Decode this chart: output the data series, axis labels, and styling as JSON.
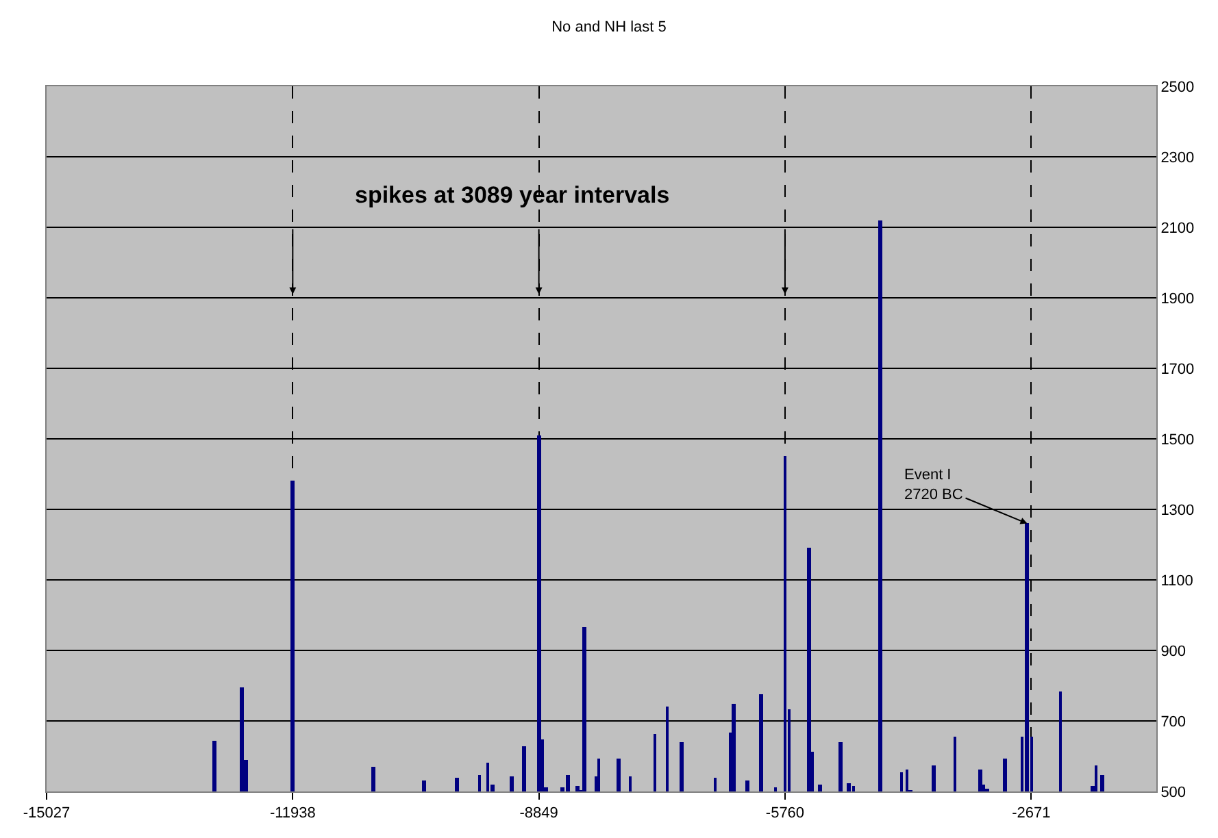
{
  "chart_data": {
    "type": "bar",
    "title": "No and NH last 5",
    "x": [
      -12925,
      -12578,
      -12524,
      -11938,
      -10928,
      -10291,
      -9878,
      -9594,
      -9491,
      -9431,
      -9192,
      -9039,
      -8849,
      -8816,
      -8761,
      -8549,
      -8483,
      -8364,
      -8327,
      -8283,
      -8124,
      -8098,
      -7847,
      -7700,
      -7396,
      -7237,
      -7053,
      -6638,
      -6437,
      -6400,
      -6236,
      -6057,
      -5882,
      -5760,
      -5706,
      -5461,
      -5423,
      -5320,
      -5060,
      -4957,
      -4898,
      -4562,
      -4296,
      -4231,
      -4182,
      -3895,
      -3630,
      -3314,
      -3266,
      -3223,
      -2995,
      -2784,
      -2720,
      -2664,
      -2301,
      -1895,
      -1857,
      -1776
    ],
    "series": [
      {
        "color": "#000080",
        "values": [
          643,
          797,
          591,
          1380,
          569,
          533,
          537,
          546,
          580,
          518,
          541,
          630,
          1510,
          649,
          510,
          512,
          545,
          515,
          505,
          967,
          541,
          595,
          594,
          542,
          662,
          742,
          638,
          540,
          666,
          749,
          530,
          776,
          512,
          1450,
          732,
          1190,
          613,
          520,
          640,
          525,
          514,
          2120,
          553,
          563,
          504,
          572,
          657,
          563,
          518,
          508,
          594,
          655,
          1260,
          655,
          785,
          517,
          574,
          545
        ]
      }
    ],
    "xlim": [
      -15027,
      -1100
    ],
    "xticks": [
      -15027,
      -11938,
      -8849,
      -5760,
      -2671
    ],
    "ylim": [
      500,
      2500
    ],
    "yticks": [
      500,
      700,
      900,
      1100,
      1300,
      1500,
      1700,
      1900,
      2100,
      2300,
      2500
    ],
    "grid": true,
    "legend": false,
    "annotations": [
      "spikes at 3089 year intervals",
      {
        "text": "Event I\n2720 BC",
        "x": -2720,
        "y": 1260
      }
    ]
  }
}
